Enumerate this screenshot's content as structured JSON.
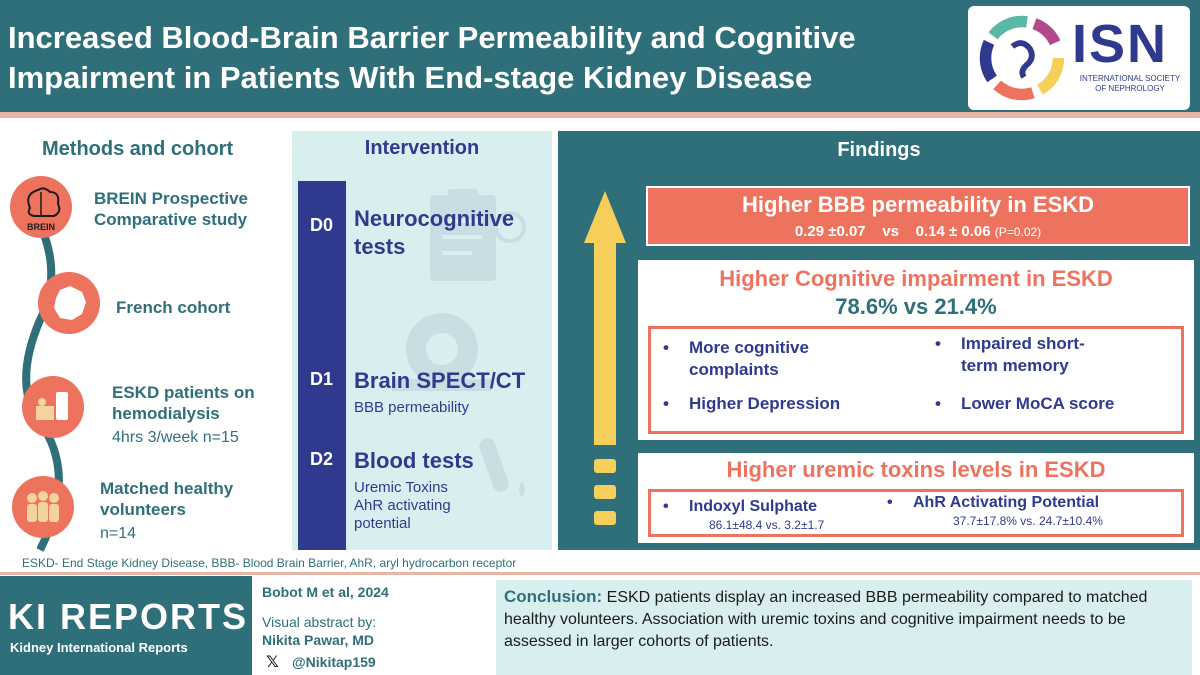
{
  "header": {
    "title_line1": "Increased Blood-Brain Barrier Permeability and Cognitive",
    "title_line2": "Impairment in Patients With End-stage Kidney Disease",
    "logo_text": "ISN",
    "logo_sub_line1": "INTERNATIONAL SOCIETY",
    "logo_sub_line2": "OF NEPHROLOGY"
  },
  "methods": {
    "title": "Methods and cohort",
    "items": [
      {
        "icon": "brain-icon",
        "icon_label": "BREIN",
        "line1": "BREIN  Prospective",
        "line2": "Comparative study"
      },
      {
        "icon": "france-map-icon",
        "line1": "French cohort"
      },
      {
        "icon": "dialysis-icon",
        "line1": "ESKD patients on",
        "line2": "hemodialysis",
        "sub": "4hrs 3/week  n=15"
      },
      {
        "icon": "people-icon",
        "line1": "Matched healthy",
        "line2": "volunteers",
        "sub": "n=14"
      }
    ]
  },
  "intervention": {
    "title": "Intervention",
    "steps": [
      {
        "day": "D0",
        "head_line1": "Neurocognitive",
        "head_line2": "tests"
      },
      {
        "day": "D1",
        "head_line1": "Brain SPECT/CT",
        "sub_line1": "BBB permeability"
      },
      {
        "day": "D2",
        "head_line1": "Blood tests",
        "sub_line1": "Uremic Toxins",
        "sub_line2": "AhR activating",
        "sub_line3": "potential"
      }
    ]
  },
  "findings": {
    "title": "Findings",
    "bbb": {
      "title": "Higher BBB permeability in ESKD",
      "values": "0.29 ±0.07    vs    0.14 ± 0.06",
      "p": "(P=0.02)"
    },
    "cognitive": {
      "title": "Higher Cognitive impairment in ESKD",
      "pct": "78.6% vs 21.4%",
      "b1_line1": "More cognitive",
      "b1_line2": "complaints",
      "b2_line1": "Impaired short-",
      "b2_line2": "term memory",
      "b3": "Higher Depression",
      "b4": "Lower MoCA score"
    },
    "toxins": {
      "title": "Higher uremic toxins levels in ESKD",
      "t1_name": "Indoxyl Sulphate",
      "t1_val": "86.1±48.4 vs. 3.2±1.7",
      "t2_name": "AhR Activating Potential",
      "t2_val": "37.7±17.8% vs. 24.7±10.4%"
    }
  },
  "footnote": "ESKD- End Stage Kidney Disease, BBB- Blood Brain Barrier, AhR, aryl hydrocarbon receptor",
  "footer": {
    "journal": "KI REPORTS",
    "journal_sub": "Kidney International Reports",
    "citation": "Bobot M et al, 2024",
    "va_line1": "Visual abstract by:",
    "va_author": "Nikita Pawar, MD",
    "handle": "@Nikitap159",
    "x_glyph": "𝕏",
    "conclusion_label": "Conclusion:",
    "conclusion_text": " ESKD patients display an increased BBB permeability compared to matched healthy volunteers. Association with uremic toxins and cognitive impairment  needs to be assessed in larger cohorts of patients."
  },
  "colors": {
    "teal": "#2f6f7a",
    "coral": "#ee735f",
    "navy": "#2f3a8f",
    "pale": "#d9efef",
    "yellow": "#f6cf5b"
  }
}
